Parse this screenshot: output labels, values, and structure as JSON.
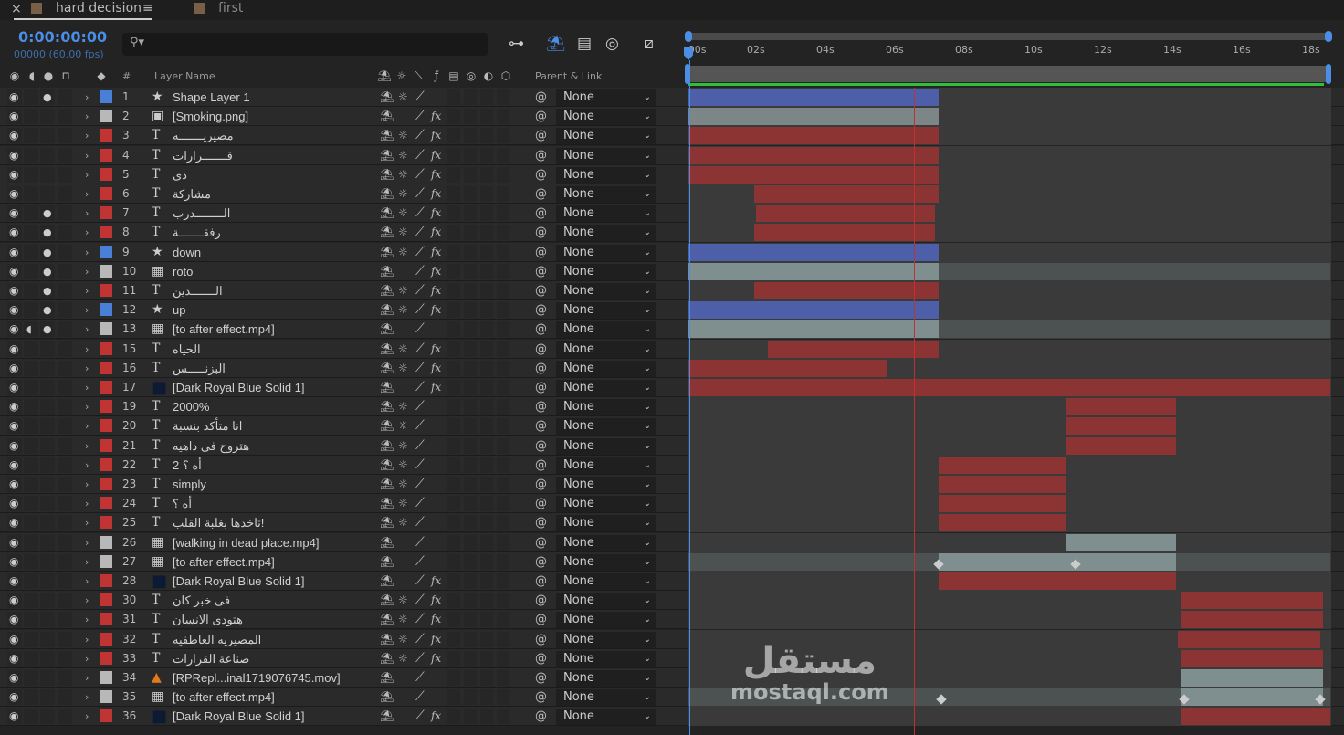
{
  "tabs": [
    {
      "label": "hard decision",
      "active": true
    },
    {
      "label": "first",
      "active": false
    }
  ],
  "timecode": "0:00:00:00",
  "fps": "00000 (60.00 fps)",
  "search_icon": "search-icon",
  "columns": {
    "layer_name": "Layer Name",
    "num": "#",
    "parent": "Parent & Link"
  },
  "ruler": {
    "ticks": [
      ":00s",
      "02s",
      "04s",
      "06s",
      "08s",
      "10s",
      "12s",
      "14s",
      "16s",
      "18s"
    ],
    "current_time_s": 0,
    "marker_time_s": 6.5
  },
  "colors": {
    "blue": "#4a7fd8",
    "gray": "#b8b8b8",
    "red": "#c03434",
    "bar_blue": "#4d5fa8",
    "bar_red": "#8c3434",
    "bar_gray": "#7c8686",
    "bar_teal": "#7f8f8f",
    "accent": "#4a8ee6"
  },
  "layers": [
    {
      "num": "1",
      "name": "Shape Layer 1",
      "label": "blue",
      "type": "star",
      "eye": true,
      "solo": true,
      "sun": true,
      "fx": false,
      "parent": "None",
      "bars": [
        [
          0,
          7.2,
          "bar_blue"
        ]
      ]
    },
    {
      "num": "2",
      "name": "[Smoking.png]",
      "label": "gray",
      "type": "image",
      "eye": true,
      "sun": false,
      "fx": true,
      "parent": "None",
      "bars": [
        [
          0,
          7.2,
          "bar_gray"
        ]
      ]
    },
    {
      "num": "3",
      "name": "مصيريـــــــه",
      "label": "red",
      "type": "text",
      "eye": true,
      "sun": true,
      "fx": true,
      "parent": "None",
      "bars": [
        [
          0,
          7.2,
          "bar_red"
        ]
      ]
    },
    {
      "num": "4",
      "name": "قـــــــرارات",
      "label": "red",
      "type": "text",
      "eye": true,
      "sun": true,
      "fx": true,
      "parent": "None",
      "bars": [
        [
          0,
          7.2,
          "bar_red"
        ]
      ]
    },
    {
      "num": "5",
      "name": "دى",
      "label": "red",
      "type": "text",
      "eye": true,
      "sun": true,
      "fx": true,
      "parent": "None",
      "bars": [
        [
          0,
          7.2,
          "bar_red"
        ]
      ]
    },
    {
      "num": "6",
      "name": "مشاركة",
      "label": "red",
      "type": "text",
      "eye": true,
      "sun": true,
      "fx": true,
      "parent": "None",
      "bars": [
        [
          1.9,
          7.2,
          "bar_red"
        ]
      ]
    },
    {
      "num": "7",
      "name": "الــــــــدرب",
      "label": "red",
      "type": "text",
      "eye": true,
      "solo": true,
      "sun": true,
      "fx": true,
      "parent": "None",
      "bars": [
        [
          1.95,
          7.1,
          "bar_red"
        ]
      ]
    },
    {
      "num": "8",
      "name": "رفقـــــــة",
      "label": "red",
      "type": "text",
      "eye": true,
      "solo": true,
      "sun": true,
      "fx": true,
      "parent": "None",
      "bars": [
        [
          1.9,
          7.1,
          "bar_red"
        ]
      ]
    },
    {
      "num": "9",
      "name": "down",
      "label": "blue",
      "type": "star",
      "eye": true,
      "solo": true,
      "sun": true,
      "fx": true,
      "parent": "None",
      "bars": [
        [
          0,
          7.2,
          "bar_blue"
        ]
      ]
    },
    {
      "num": "10",
      "name": "roto",
      "label": "gray",
      "type": "video",
      "eye": true,
      "solo": true,
      "sun": false,
      "fx": true,
      "parent": "None",
      "bars": [
        [
          0,
          18.5,
          "bar_dark"
        ],
        [
          0,
          7.2,
          "bar_teal"
        ]
      ]
    },
    {
      "num": "11",
      "name": "الـــــــدين",
      "label": "red",
      "type": "text",
      "eye": true,
      "solo": true,
      "sun": true,
      "fx": true,
      "parent": "None",
      "bars": [
        [
          1.9,
          7.2,
          "bar_red"
        ]
      ]
    },
    {
      "num": "12",
      "name": "up",
      "label": "blue",
      "type": "star",
      "eye": true,
      "solo": true,
      "sun": true,
      "fx": true,
      "parent": "None",
      "bars": [
        [
          0,
          7.2,
          "bar_blue"
        ]
      ]
    },
    {
      "num": "13",
      "name": "[to after effect.mp4]",
      "label": "gray",
      "type": "video",
      "eye": true,
      "audio": true,
      "solo": true,
      "sun": false,
      "fx": false,
      "parent": "None",
      "bars": [
        [
          0,
          18.5,
          "bar_dark"
        ],
        [
          0,
          7.2,
          "bar_teal"
        ]
      ]
    },
    {
      "num": "15",
      "name": "الحياه",
      "label": "red",
      "type": "text",
      "eye": true,
      "sun": true,
      "fx": true,
      "parent": "None",
      "bars": [
        [
          2.3,
          7.2,
          "bar_red"
        ]
      ]
    },
    {
      "num": "16",
      "name": "البزنـــــس",
      "label": "red",
      "type": "text",
      "eye": true,
      "sun": true,
      "fx": true,
      "parent": "None",
      "bars": [
        [
          0,
          5.7,
          "bar_red"
        ]
      ]
    },
    {
      "num": "17",
      "name": "[Dark Royal Blue Solid 1]",
      "label": "red",
      "type": "solid",
      "eye": true,
      "sun": false,
      "fx": true,
      "parent": "None",
      "bars": [
        [
          0,
          18.5,
          "bar_red"
        ]
      ]
    },
    {
      "num": "19",
      "name": "2000%",
      "label": "red",
      "type": "text",
      "eye": true,
      "sun": true,
      "fx": false,
      "parent": "None",
      "bars": [
        [
          10.9,
          14.05,
          "bar_red"
        ]
      ]
    },
    {
      "num": "20",
      "name": "انا متأكد بنسبة",
      "label": "red",
      "type": "text",
      "eye": true,
      "sun": true,
      "fx": false,
      "parent": "None",
      "bars": [
        [
          10.9,
          14.05,
          "bar_red"
        ]
      ]
    },
    {
      "num": "21",
      "name": "هتروح فى داهيه",
      "label": "red",
      "type": "text",
      "eye": true,
      "sun": true,
      "fx": false,
      "parent": "None",
      "bars": [
        [
          10.9,
          14.05,
          "bar_red"
        ]
      ]
    },
    {
      "num": "22",
      "name": "أه ؟ 2",
      "label": "red",
      "type": "text",
      "eye": true,
      "sun": true,
      "fx": false,
      "parent": "None",
      "bars": [
        [
          7.2,
          10.9,
          "bar_red"
        ]
      ]
    },
    {
      "num": "23",
      "name": "simply",
      "label": "red",
      "type": "text",
      "eye": true,
      "sun": true,
      "fx": false,
      "parent": "None",
      "bars": [
        [
          7.2,
          10.9,
          "bar_red"
        ]
      ]
    },
    {
      "num": "24",
      "name": "أه ؟",
      "label": "red",
      "type": "text",
      "eye": true,
      "sun": true,
      "fx": false,
      "parent": "None",
      "bars": [
        [
          7.2,
          10.9,
          "bar_red"
        ]
      ]
    },
    {
      "num": "25",
      "name": "تاخدها بغلبة القلب!",
      "label": "red",
      "type": "text",
      "eye": true,
      "sun": true,
      "fx": false,
      "parent": "None",
      "bars": [
        [
          7.2,
          10.9,
          "bar_red"
        ]
      ]
    },
    {
      "num": "26",
      "name": "[walking in dead place.mp4]",
      "label": "gray",
      "type": "video",
      "eye": true,
      "sun": false,
      "fx": false,
      "parent": "None",
      "bars": [
        [
          10.9,
          14.05,
          "bar_teal"
        ]
      ]
    },
    {
      "num": "27",
      "name": "[to after effect.mp4]",
      "label": "gray",
      "type": "video",
      "eye": true,
      "sun": false,
      "fx": false,
      "parent": "None",
      "bars": [
        [
          0,
          18.5,
          "bar_dark"
        ],
        [
          7.2,
          14.05,
          "bar_teal"
        ]
      ],
      "keyframes": [
        7.2,
        11.15
      ]
    },
    {
      "num": "28",
      "name": "[Dark Royal Blue Solid 1]",
      "label": "red",
      "type": "solid",
      "eye": true,
      "sun": false,
      "fx": true,
      "parent": "None",
      "bars": [
        [
          7.2,
          14.05,
          "bar_red"
        ]
      ]
    },
    {
      "num": "30",
      "name": "فى خبر كان",
      "label": "red",
      "type": "text",
      "eye": true,
      "sun": true,
      "fx": true,
      "parent": "None",
      "bars": [
        [
          14.2,
          18.3,
          "bar_red"
        ]
      ]
    },
    {
      "num": "31",
      "name": "هتودى الانسان",
      "label": "red",
      "type": "text",
      "eye": true,
      "sun": true,
      "fx": true,
      "parent": "None",
      "bars": [
        [
          14.2,
          18.3,
          "bar_red"
        ]
      ]
    },
    {
      "num": "32",
      "name": "المصيريه العاطفيه",
      "label": "red",
      "type": "text",
      "eye": true,
      "sun": true,
      "fx": true,
      "parent": "None",
      "bars": [
        [
          14.1,
          18.2,
          "bar_red"
        ]
      ]
    },
    {
      "num": "33",
      "name": "صناعة القرارات",
      "label": "red",
      "type": "text",
      "eye": true,
      "sun": true,
      "fx": true,
      "parent": "None",
      "bars": [
        [
          14.2,
          18.3,
          "bar_red"
        ]
      ]
    },
    {
      "num": "34",
      "name": "[RPRepl...inal1719076745.mov]",
      "label": "gray",
      "type": "vlc",
      "eye": true,
      "sun": false,
      "fx": false,
      "parent": "None",
      "bars": [
        [
          14.2,
          18.3,
          "bar_teal"
        ]
      ]
    },
    {
      "num": "35",
      "name": "[to after effect.mp4]",
      "label": "gray",
      "type": "video",
      "eye": true,
      "sun": false,
      "fx": false,
      "parent": "None",
      "bars": [
        [
          0,
          18.5,
          "bar_dark"
        ],
        [
          14.2,
          18.3,
          "bar_teal"
        ]
      ],
      "keyframes": [
        7.3,
        14.3,
        18.2
      ]
    },
    {
      "num": "36",
      "name": "[Dark Royal Blue Solid 1]",
      "label": "red",
      "type": "solid",
      "eye": true,
      "sun": false,
      "fx": true,
      "parent": "None",
      "bars": [
        [
          14.2,
          18.5,
          "bar_red"
        ]
      ]
    }
  ],
  "watermark": {
    "arabic": "مستقل",
    "latin": "mostaql.com"
  }
}
